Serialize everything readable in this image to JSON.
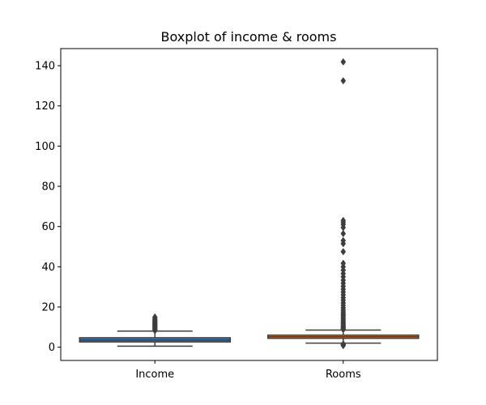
{
  "chart_data": {
    "type": "boxplot",
    "title": "Boxplot of income & rooms",
    "xlabel": "",
    "ylabel": "",
    "categories": [
      "Income",
      "Rooms"
    ],
    "ylim": [
      -6.6,
      148.5
    ],
    "yticks": [
      0,
      20,
      40,
      60,
      80,
      100,
      120,
      140
    ],
    "grid": false,
    "series": [
      {
        "category": "Income",
        "color": "#3b75af",
        "whisker_low": 0.5,
        "q1": 2.6,
        "median": 3.5,
        "q3": 4.7,
        "whisker_high": 8.0,
        "outliers": [
          8.2,
          8.5,
          8.9,
          9.3,
          9.7,
          10.1,
          10.5,
          10.9,
          11.3,
          11.7,
          12.1,
          12.5,
          12.9,
          13.3,
          13.8,
          14.3,
          15.0
        ]
      },
      {
        "category": "Rooms",
        "color": "#ef8536",
        "whisker_low": 2.0,
        "q1": 4.4,
        "median": 5.2,
        "q3": 6.0,
        "whisker_high": 8.5,
        "outliers": [
          0.8,
          1.2,
          1.6,
          8.8,
          9.2,
          9.6,
          10.0,
          10.5,
          11.0,
          11.6,
          12.2,
          12.8,
          13.5,
          14.2,
          15.0,
          15.8,
          16.6,
          17.5,
          18.5,
          19.6,
          20.8,
          22.0,
          23.3,
          24.6,
          26.0,
          27.4,
          28.8,
          30.3,
          31.8,
          33.3,
          35.0,
          36.6,
          38.3,
          40.0,
          41.7,
          47.5,
          51.5,
          53.0,
          56.5,
          59.5,
          61.0,
          62.0,
          63.0,
          132.5,
          141.9
        ]
      }
    ]
  }
}
